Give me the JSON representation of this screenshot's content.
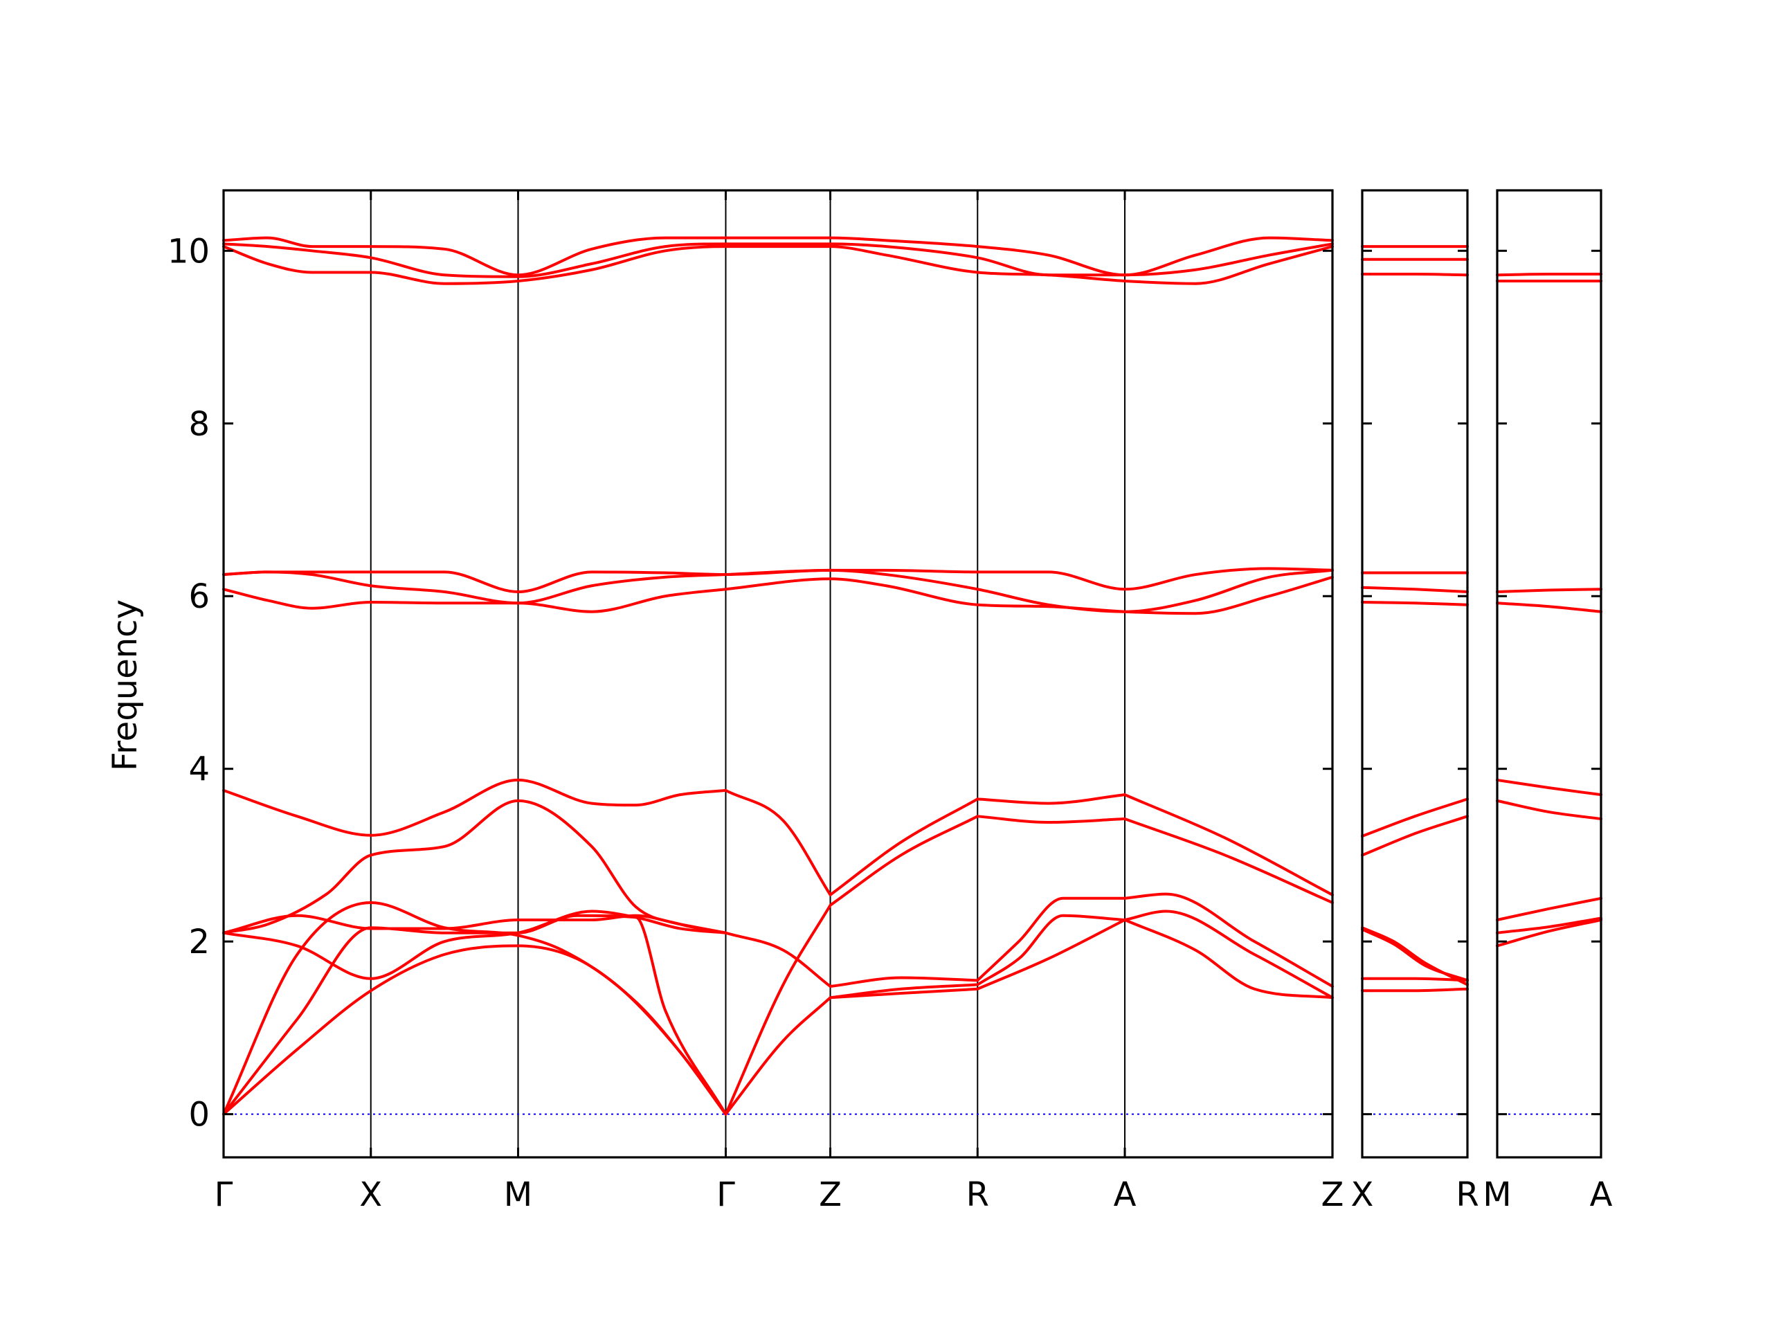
{
  "chart_data": {
    "type": "line",
    "ylabel": "Frequency",
    "ylim": [
      -0.5,
      10.7
    ],
    "yticks": [
      0,
      2,
      4,
      6,
      8,
      10
    ],
    "band_color": "#ff0000",
    "zero_line_color": "#0000ff",
    "panels": [
      {
        "path_labels": [
          "Γ",
          "X",
          "M",
          "Γ",
          "Z",
          "R",
          "A",
          "Z"
        ],
        "path_x": [
          0,
          1,
          2,
          3.41,
          4.12,
          5.12,
          6.12,
          7.53
        ],
        "bands": [
          {
            "x": [
              0,
              0.5,
              1.0,
              1.5,
              2.0,
              2.3,
              2.7,
              3.1,
              3.41
            ],
            "y": [
              0,
              1.85,
              2.45,
              2.16,
              2.07,
              1.9,
              1.45,
              0.72,
              0
            ]
          },
          {
            "x": [
              0,
              0.5,
              1.0,
              1.5,
              2.0,
              2.4,
              2.8,
              3.1,
              3.41
            ],
            "y": [
              0,
              0.75,
              1.43,
              1.85,
              1.95,
              1.8,
              1.3,
              0.72,
              0
            ]
          },
          {
            "x": [
              0,
              0.5,
              1.0,
              1.5,
              2.0,
              2.4,
              2.8,
              3.0,
              3.41
            ],
            "y": [
              0,
              1.1,
              2.16,
              2.1,
              2.1,
              2.3,
              2.28,
              1.2,
              0
            ]
          },
          {
            "x": [
              0,
              0.3,
              0.7,
              1.0,
              1.5,
              2.0,
              2.5,
              2.8,
              3.1,
              3.41
            ],
            "y": [
              2.1,
              2.2,
              2.55,
              3.0,
              3.1,
              3.63,
              3.1,
              2.4,
              2.2,
              2.1
            ]
          },
          {
            "x": [
              0,
              0.5,
              1.0,
              1.5,
              2.0,
              2.5,
              2.8,
              3.1,
              3.41
            ],
            "y": [
              2.1,
              1.95,
              1.57,
              2.0,
              2.1,
              2.35,
              2.28,
              2.15,
              2.1
            ]
          },
          {
            "x": [
              0,
              0.5,
              1.0,
              1.5,
              2.0,
              2.5,
              2.8,
              3.1,
              3.41
            ],
            "y": [
              2.1,
              2.3,
              2.15,
              2.15,
              2.25,
              2.25,
              2.3,
              2.2,
              2.1
            ]
          },
          {
            "x": [
              0,
              0.5,
              1.0,
              1.5,
              2.0,
              2.5,
              2.8,
              3.1,
              3.41
            ],
            "y": [
              3.75,
              3.45,
              3.23,
              3.5,
              3.87,
              3.6,
              3.58,
              3.7,
              3.75
            ]
          },
          {
            "x": [
              3.41,
              3.8,
              4.12
            ],
            "y": [
              0,
              1.5,
              2.42
            ]
          },
          {
            "x": [
              3.41,
              3.8,
              4.12
            ],
            "y": [
              0,
              0.85,
              1.35
            ]
          },
          {
            "x": [
              3.41,
              3.8,
              4.12
            ],
            "y": [
              2.1,
              1.9,
              1.48
            ]
          },
          {
            "x": [
              3.41,
              3.8,
              4.12
            ],
            "y": [
              3.75,
              3.4,
              2.54
            ]
          },
          {
            "x": [
              4.12,
              4.6,
              5.12
            ],
            "y": [
              2.42,
              3.0,
              3.45
            ]
          },
          {
            "x": [
              4.12,
              4.6,
              5.12
            ],
            "y": [
              2.54,
              3.15,
              3.65
            ]
          },
          {
            "x": [
              4.12,
              4.6,
              5.12
            ],
            "y": [
              1.48,
              1.58,
              1.55
            ]
          },
          {
            "x": [
              4.12,
              4.6,
              5.12
            ],
            "y": [
              1.35,
              1.45,
              1.5
            ]
          },
          {
            "x": [
              4.12,
              4.6,
              5.12
            ],
            "y": [
              1.35,
              1.4,
              1.45
            ]
          },
          {
            "x": [
              5.12,
              5.6,
              6.12
            ],
            "y": [
              3.45,
              3.38,
              3.42
            ]
          },
          {
            "x": [
              5.12,
              5.6,
              6.12
            ],
            "y": [
              3.65,
              3.6,
              3.7
            ]
          },
          {
            "x": [
              5.12,
              5.4,
              5.7,
              6.12
            ],
            "y": [
              1.55,
              2.0,
              2.5,
              2.5
            ]
          },
          {
            "x": [
              5.12,
              5.4,
              5.7,
              6.12
            ],
            "y": [
              1.5,
              1.8,
              2.3,
              2.25
            ]
          },
          {
            "x": [
              5.12,
              5.6,
              6.12
            ],
            "y": [
              1.45,
              1.8,
              2.25
            ]
          },
          {
            "x": [
              6.12,
              6.8,
              7.53
            ],
            "y": [
              3.42,
              3.0,
              2.45
            ]
          },
          {
            "x": [
              6.12,
              6.8,
              7.53
            ],
            "y": [
              3.7,
              3.2,
              2.54
            ]
          },
          {
            "x": [
              6.12,
              6.4,
              7.0,
              7.53
            ],
            "y": [
              2.5,
              2.55,
              2.0,
              1.48
            ]
          },
          {
            "x": [
              6.12,
              6.4,
              7.0,
              7.53
            ],
            "y": [
              2.25,
              2.35,
              1.85,
              1.35
            ]
          },
          {
            "x": [
              6.12,
              6.6,
              7.0,
              7.53
            ],
            "y": [
              2.25,
              1.9,
              1.45,
              1.35
            ]
          },
          {
            "x": [
              0,
              0.3,
              0.6,
              1.0,
              1.5,
              2.0,
              2.5,
              3.0,
              3.41,
              4.12,
              4.5,
              5.12,
              5.6,
              6.12,
              6.6,
              7.1,
              7.53
            ],
            "y": [
              6.25,
              6.28,
              6.28,
              6.28,
              6.28,
              6.05,
              6.28,
              6.27,
              6.25,
              6.3,
              6.3,
              6.28,
              6.28,
              6.08,
              6.25,
              6.32,
              6.3
            ]
          },
          {
            "x": [
              0,
              0.3,
              0.6,
              1.0,
              1.5,
              2.0,
              2.5,
              3.0,
              3.41,
              4.12,
              4.5,
              5.12,
              5.6,
              6.12,
              6.6,
              7.1,
              7.53
            ],
            "y": [
              6.25,
              6.28,
              6.25,
              6.12,
              6.05,
              5.92,
              6.12,
              6.22,
              6.25,
              6.3,
              6.25,
              6.08,
              5.9,
              5.82,
              5.95,
              6.22,
              6.3
            ]
          },
          {
            "x": [
              0,
              0.3,
              0.6,
              1.0,
              1.5,
              2.0,
              2.5,
              3.0,
              3.41,
              4.12,
              4.5,
              5.12,
              5.6,
              6.12,
              6.6,
              7.1,
              7.53
            ],
            "y": [
              6.08,
              5.95,
              5.86,
              5.93,
              5.92,
              5.92,
              5.82,
              6.0,
              6.08,
              6.2,
              6.12,
              5.9,
              5.88,
              5.82,
              5.8,
              6.0,
              6.22
            ]
          },
          {
            "x": [
              0,
              0.3,
              0.6,
              1.0,
              1.5,
              2.0,
              2.5,
              3.0,
              3.41,
              4.12,
              4.5,
              5.12,
              5.6,
              6.12,
              6.6,
              7.1,
              7.53
            ],
            "y": [
              10.12,
              10.15,
              10.05,
              10.05,
              10.02,
              9.72,
              10.02,
              10.15,
              10.15,
              10.15,
              10.12,
              10.05,
              9.95,
              9.72,
              9.95,
              10.15,
              10.12
            ]
          },
          {
            "x": [
              0,
              0.3,
              0.6,
              1.0,
              1.5,
              2.0,
              2.5,
              3.0,
              3.41,
              4.12,
              4.5,
              5.12,
              5.6,
              6.12,
              6.6,
              7.1,
              7.53
            ],
            "y": [
              10.08,
              10.05,
              10.0,
              9.92,
              9.72,
              9.7,
              9.85,
              10.05,
              10.08,
              10.08,
              10.05,
              9.92,
              9.72,
              9.72,
              9.78,
              9.95,
              10.08
            ]
          },
          {
            "x": [
              0,
              0.3,
              0.6,
              1.0,
              1.5,
              2.0,
              2.5,
              3.0,
              3.41,
              4.12,
              4.5,
              5.12,
              5.6,
              6.12,
              6.6,
              7.1,
              7.53
            ],
            "y": [
              10.05,
              9.85,
              9.75,
              9.75,
              9.62,
              9.65,
              9.78,
              10.0,
              10.05,
              10.05,
              9.95,
              9.75,
              9.72,
              9.65,
              9.62,
              9.85,
              10.05
            ]
          }
        ]
      },
      {
        "path_labels": [
          "X",
          "R"
        ],
        "path_x": [
          0,
          1
        ],
        "bands": [
          {
            "x": [
              0,
              0.5,
              1
            ],
            "y": [
              10.05,
              10.05,
              10.05
            ]
          },
          {
            "x": [
              0,
              0.5,
              1
            ],
            "y": [
              9.9,
              9.9,
              9.9
            ]
          },
          {
            "x": [
              0,
              0.5,
              1
            ],
            "y": [
              9.73,
              9.73,
              9.72
            ]
          },
          {
            "x": [
              0,
              0.5,
              1
            ],
            "y": [
              6.27,
              6.27,
              6.27
            ]
          },
          {
            "x": [
              0,
              0.5,
              1
            ],
            "y": [
              6.1,
              6.08,
              6.05
            ]
          },
          {
            "x": [
              0,
              0.5,
              1
            ],
            "y": [
              5.93,
              5.92,
              5.9
            ]
          },
          {
            "x": [
              0,
              0.5,
              1
            ],
            "y": [
              3.22,
              3.45,
              3.65
            ]
          },
          {
            "x": [
              0,
              0.5,
              1
            ],
            "y": [
              3.0,
              3.25,
              3.45
            ]
          },
          {
            "x": [
              0,
              0.3,
              0.6,
              1
            ],
            "y": [
              2.16,
              2.0,
              1.75,
              1.5
            ]
          },
          {
            "x": [
              0,
              0.3,
              0.6,
              1
            ],
            "y": [
              2.14,
              1.97,
              1.72,
              1.55
            ]
          },
          {
            "x": [
              0,
              0.5,
              1
            ],
            "y": [
              1.57,
              1.57,
              1.55
            ]
          },
          {
            "x": [
              0,
              0.5,
              1
            ],
            "y": [
              1.43,
              1.43,
              1.45
            ]
          }
        ]
      },
      {
        "path_labels": [
          "M",
          "A"
        ],
        "path_x": [
          0,
          1
        ],
        "bands": [
          {
            "x": [
              0,
              0.5,
              1
            ],
            "y": [
              9.72,
              9.73,
              9.73
            ]
          },
          {
            "x": [
              0,
              0.5,
              1
            ],
            "y": [
              9.65,
              9.65,
              9.65
            ]
          },
          {
            "x": [
              0,
              0.5,
              1
            ],
            "y": [
              6.05,
              6.07,
              6.08
            ]
          },
          {
            "x": [
              0,
              0.5,
              1
            ],
            "y": [
              5.92,
              5.88,
              5.82
            ]
          },
          {
            "x": [
              0,
              0.5,
              1
            ],
            "y": [
              3.87,
              3.78,
              3.7
            ]
          },
          {
            "x": [
              0,
              0.5,
              1
            ],
            "y": [
              3.63,
              3.5,
              3.42
            ]
          },
          {
            "x": [
              0,
              0.5,
              1
            ],
            "y": [
              2.25,
              2.38,
              2.5
            ]
          },
          {
            "x": [
              0,
              0.5,
              1
            ],
            "y": [
              2.1,
              2.17,
              2.27
            ]
          },
          {
            "x": [
              0,
              0.5,
              1
            ],
            "y": [
              1.95,
              2.12,
              2.25
            ]
          }
        ]
      }
    ]
  }
}
